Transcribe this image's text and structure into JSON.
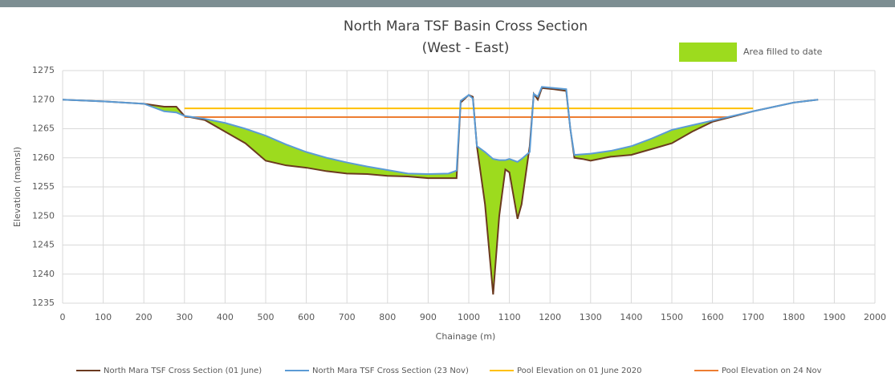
{
  "chart_data": {
    "type": "line",
    "title": "North Mara TSF Basin Cross Section",
    "subtitle": "(West - East)",
    "x_label": "Chainage (m)",
    "y_label": "Elevation (mamsl)",
    "fill_legend": "Area filled to date",
    "fill_color": "#9ddb1e",
    "xlim": [
      0,
      2000
    ],
    "xticks": [
      0,
      100,
      200,
      300,
      400,
      500,
      600,
      700,
      800,
      900,
      1000,
      1100,
      1200,
      1300,
      1400,
      1500,
      1600,
      1700,
      1800,
      1900,
      2000
    ],
    "ylim": [
      1235,
      1275
    ],
    "yticks": [
      1235,
      1240,
      1245,
      1250,
      1255,
      1260,
      1265,
      1270,
      1275
    ],
    "grid": true,
    "legend": "bottom",
    "series": [
      {
        "name": "North Mara TSF Cross Section (01 June)",
        "color": "#6b3a1f",
        "x": [
          0,
          100,
          200,
          250,
          280,
          300,
          350,
          400,
          450,
          500,
          550,
          600,
          650,
          700,
          750,
          800,
          850,
          900,
          950,
          970,
          980,
          1000,
          1010,
          1020,
          1040,
          1060,
          1075,
          1090,
          1100,
          1120,
          1130,
          1150,
          1160,
          1170,
          1180,
          1210,
          1240,
          1250,
          1260,
          1280,
          1300,
          1350,
          1400,
          1450,
          1500,
          1550,
          1600,
          1700,
          1800,
          1860
        ],
        "values": [
          1270,
          1269.7,
          1269.3,
          1268.8,
          1268.8,
          1267.2,
          1266.5,
          1264.5,
          1262.5,
          1259.5,
          1258.7,
          1258.3,
          1257.7,
          1257.3,
          1257.2,
          1256.9,
          1256.8,
          1256.5,
          1256.5,
          1256.5,
          1269.5,
          1270.8,
          1270.5,
          1262,
          1252,
          1236.5,
          1250,
          1258,
          1257.5,
          1249.5,
          1252,
          1262,
          1271,
          1270,
          1272,
          1271.8,
          1271.5,
          1265,
          1260,
          1259.8,
          1259.5,
          1260.2,
          1260.5,
          1261.5,
          1262.5,
          1264.5,
          1266.2,
          1268,
          1269.5,
          1270
        ]
      },
      {
        "name": "North Mara TSF Cross Section (23 Nov)",
        "color": "#5b9bd5",
        "x": [
          0,
          100,
          200,
          250,
          280,
          300,
          350,
          400,
          450,
          500,
          550,
          600,
          650,
          700,
          750,
          800,
          850,
          900,
          950,
          970,
          980,
          1000,
          1010,
          1020,
          1040,
          1060,
          1075,
          1090,
          1100,
          1120,
          1130,
          1150,
          1160,
          1170,
          1180,
          1210,
          1240,
          1250,
          1260,
          1280,
          1300,
          1350,
          1400,
          1450,
          1500,
          1550,
          1600,
          1700,
          1800,
          1860
        ],
        "values": [
          1270,
          1269.7,
          1269.3,
          1268,
          1267.8,
          1267.2,
          1266.7,
          1266,
          1265,
          1263.8,
          1262.3,
          1261,
          1260,
          1259.2,
          1258.5,
          1257.9,
          1257.3,
          1257.2,
          1257.3,
          1257.8,
          1269.8,
          1270.8,
          1270.2,
          1262,
          1261,
          1259.8,
          1259.6,
          1259.6,
          1259.8,
          1259.3,
          1259.8,
          1261,
          1271,
          1270.5,
          1272.2,
          1272,
          1271.8,
          1265,
          1260.5,
          1260.6,
          1260.7,
          1261.2,
          1262,
          1263.3,
          1264.8,
          1265.6,
          1266.4,
          1268,
          1269.5,
          1270
        ]
      },
      {
        "name": "Pool Elevation on 01 June 2020",
        "color": "#ffc000",
        "x": [
          300,
          1700
        ],
        "values": [
          1268.5,
          1268.5
        ]
      },
      {
        "name": "Pool Elevation on 24 Nov",
        "color": "#ed7d31",
        "x": [
          300,
          1640
        ],
        "values": [
          1267,
          1267
        ]
      }
    ]
  }
}
